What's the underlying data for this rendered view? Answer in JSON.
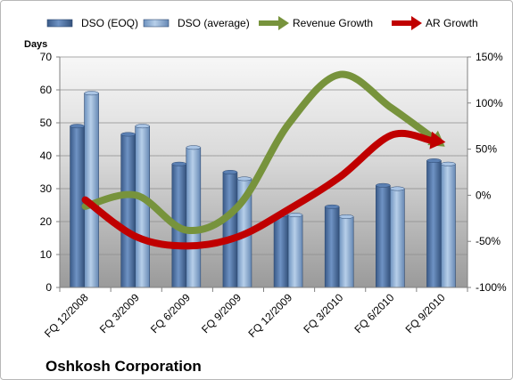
{
  "chart_data": {
    "type": "bar",
    "title": "Oshkosh Corporation",
    "categories": [
      "FQ 12/2008",
      "FQ 3/2009",
      "FQ 6/2009",
      "FQ 9/2009",
      "FQ 12/2009",
      "FQ 3/2010",
      "FQ 6/2010",
      "FQ 9/2010"
    ],
    "ylabel": "Days",
    "ylim": [
      0,
      70
    ],
    "yticks": [
      0,
      10,
      20,
      30,
      40,
      50,
      60,
      70
    ],
    "y2lim": [
      -100,
      150
    ],
    "y2ticks": [
      -100,
      -50,
      0,
      50,
      100,
      150
    ],
    "y2_tick_labels": [
      "-100%",
      "-50%",
      "0%",
      "50%",
      "100%",
      "150%"
    ],
    "legend_position": "top",
    "grid": true,
    "series": [
      {
        "name": "DSO (EOQ)",
        "type": "bar",
        "axis": "left",
        "color": "#4a6e9f",
        "values": [
          49,
          46.5,
          37.5,
          35,
          22,
          24.5,
          31,
          38.5
        ]
      },
      {
        "name": "DSO (average)",
        "type": "bar",
        "axis": "left",
        "color": "#8aaed4",
        "values": [
          59,
          49,
          42.5,
          33,
          22,
          21.5,
          30,
          37.5
        ]
      },
      {
        "name": "Revenue Growth",
        "type": "line",
        "axis": "right",
        "color": "#77933c",
        "values": [
          -12,
          0,
          -38,
          -12,
          78,
          131,
          95,
          55
        ]
      },
      {
        "name": "AR Growth",
        "type": "line",
        "axis": "right",
        "color": "#c00000",
        "values": [
          -5,
          -45,
          -55,
          -45,
          -15,
          20,
          65,
          58
        ]
      }
    ]
  }
}
